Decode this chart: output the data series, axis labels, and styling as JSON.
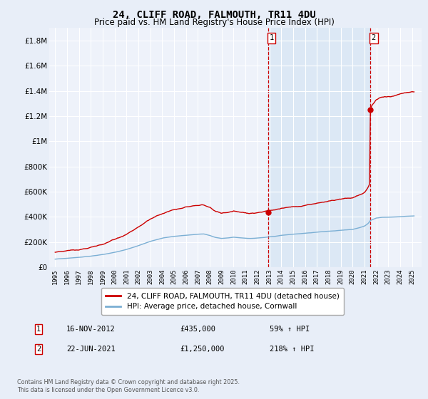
{
  "title": "24, CLIFF ROAD, FALMOUTH, TR11 4DU",
  "subtitle": "Price paid vs. HM Land Registry's House Price Index (HPI)",
  "legend_line1": "24, CLIFF ROAD, FALMOUTH, TR11 4DU (detached house)",
  "legend_line2": "HPI: Average price, detached house, Cornwall",
  "annotation1": {
    "label": "1",
    "date": "16-NOV-2012",
    "price": "£435,000",
    "pct": "59% ↑ HPI",
    "year": 2012.88
  },
  "annotation2": {
    "label": "2",
    "date": "22-JUN-2021",
    "price": "£1,250,000",
    "pct": "218% ↑ HPI",
    "year": 2021.47
  },
  "price1": 435000,
  "price2": 1250000,
  "footer": "Contains HM Land Registry data © Crown copyright and database right 2025.\nThis data is licensed under the Open Government Licence v3.0.",
  "ylim": [
    0,
    1900000
  ],
  "bg_color": "#e8eef8",
  "plot_bg": "#eef2fa",
  "shade_color": "#dce8f5",
  "red_color": "#cc0000",
  "blue_color": "#7bafd4",
  "grid_color": "#ffffff"
}
